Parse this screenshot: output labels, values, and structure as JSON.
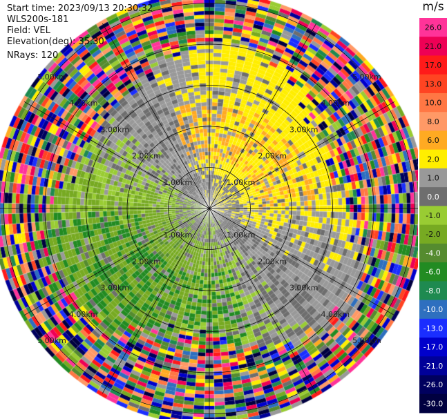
{
  "info": {
    "start_time": "Start time: 2023/09/13 20:30:32",
    "instrument": "WLS200s-181",
    "field": "Field: VEL",
    "elevation": "Elevation(deg): 35.30",
    "nrays": "NRays: 120"
  },
  "colorbar": {
    "unit": "m/s",
    "levels": [
      {
        "label": "26.0",
        "color": "#ff3399"
      },
      {
        "label": "21.0",
        "color": "#ee0055"
      },
      {
        "label": "17.0",
        "color": "#ff1a1a"
      },
      {
        "label": "13.0",
        "color": "#ff4422"
      },
      {
        "label": "10.0",
        "color": "#ff7744"
      },
      {
        "label": "8.0",
        "color": "#ff9966"
      },
      {
        "label": "6.0",
        "color": "#ffaa22"
      },
      {
        "label": "2.0",
        "color": "#ffee00"
      },
      {
        "label": "1.0",
        "color": "#999999"
      },
      {
        "label": "0.0",
        "color": "#6e6e6e"
      },
      {
        "label": "-1.0",
        "color": "#99cc33"
      },
      {
        "label": "-2.0",
        "color": "#77aa22"
      },
      {
        "label": "-4.0",
        "color": "#558b2f"
      },
      {
        "label": "-6.0",
        "color": "#228b22"
      },
      {
        "label": "-8.0",
        "color": "#1e8a50"
      },
      {
        "label": "-10.0",
        "color": "#2e6fbf"
      },
      {
        "label": "-13.0",
        "color": "#1a2eff"
      },
      {
        "label": "-17.0",
        "color": "#0000cc"
      },
      {
        "label": "-21.0",
        "color": "#000099"
      },
      {
        "label": "-26.0",
        "color": "#00005e"
      },
      {
        "label": "-30.0",
        "color": "#000040"
      }
    ]
  },
  "chart_data": {
    "type": "heatmap",
    "projection": "polar PPI",
    "field": "VEL",
    "nrays": 120,
    "range_rings": [
      "1.00km",
      "2.00km",
      "3.00km",
      "4.00km",
      "5.00km"
    ],
    "ring_values_km": [
      1,
      2,
      3,
      4,
      5
    ],
    "max_range_km": 5.2,
    "colorbar_unit": "m/s",
    "colorbar_ticks": [
      26.0,
      21.0,
      17.0,
      13.0,
      10.0,
      8.0,
      6.0,
      2.0,
      1.0,
      0.0,
      -1.0,
      -2.0,
      -4.0,
      -6.0,
      -8.0,
      -10.0,
      -13.0,
      -17.0,
      -21.0,
      -26.0,
      -30.0
    ],
    "pattern": "positive (receding) velocities north-east half, negative (approaching) velocities south-west half; noisy outer gates beyond ~4 km",
    "regions": [
      {
        "name": "north-east-yellow",
        "approx_velocity": 2.0
      },
      {
        "name": "north-orange-patches",
        "approx_velocity": 6.0
      },
      {
        "name": "south-west-green",
        "approx_velocity": -2.0
      },
      {
        "name": "south-dark-green",
        "approx_velocity": -6.0
      },
      {
        "name": "center-gray",
        "approx_velocity": 0.0
      }
    ]
  }
}
